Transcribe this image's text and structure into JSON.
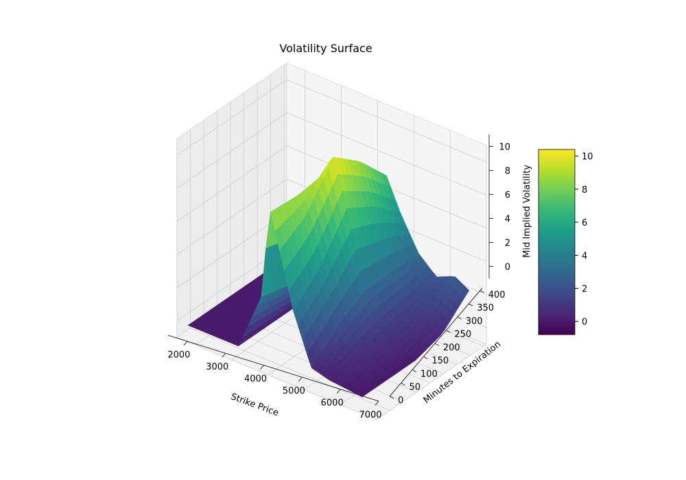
{
  "chart_data": {
    "type": "surface3d",
    "title": "Volatility Surface",
    "xlabel": "Strike Price",
    "ylabel": "Minutes to Expiration",
    "zlabel": "Mid Implied Volatility",
    "xlim": [
      1500,
      7000
    ],
    "ylim": [
      0,
      410
    ],
    "zlim": [
      -1,
      11
    ],
    "x_ticks": [
      "2000",
      "3000",
      "4000",
      "5000",
      "6000",
      "7000"
    ],
    "y_ticks": [
      "0",
      "50",
      "100",
      "150",
      "200",
      "250",
      "300",
      "350",
      "400"
    ],
    "z_ticks": [
      "0",
      "2",
      "4",
      "6",
      "8",
      "10"
    ],
    "colormap": "viridis",
    "colorbar": {
      "range": [
        -0.8,
        10.4
      ],
      "ticks": [
        "0",
        "2",
        "4",
        "6",
        "8",
        "10"
      ],
      "colors": [
        "#440154",
        "#482878",
        "#3e4989",
        "#31688e",
        "#26828e",
        "#1f9e89",
        "#35b779",
        "#6ece58",
        "#b5de2b",
        "#fde725"
      ]
    },
    "grid": true,
    "surface_profile": {
      "strikes": [
        1800,
        2500,
        3200,
        3900,
        4000,
        4300,
        4700,
        5200,
        5700,
        6200,
        6600
      ],
      "minutes": [
        0,
        100,
        200,
        300,
        400
      ],
      "volatility": [
        [
          0.0,
          0.0,
          0.0,
          4.0,
          9.5,
          7.0,
          3.5,
          0.5,
          0.2,
          0.1,
          0.0
        ],
        [
          0.0,
          0.0,
          0.0,
          3.5,
          9.0,
          8.0,
          5.0,
          2.0,
          0.8,
          0.3,
          0.0
        ],
        [
          0.0,
          0.0,
          0.0,
          3.0,
          8.5,
          10.4,
          7.5,
          3.0,
          1.2,
          0.5,
          0.0
        ],
        [
          0.0,
          0.0,
          0.0,
          2.5,
          7.5,
          9.0,
          6.5,
          3.0,
          1.5,
          1.0,
          0.5
        ],
        [
          0.0,
          0.0,
          0.0,
          2.0,
          6.0,
          7.0,
          5.0,
          3.0,
          2.0,
          2.5,
          2.0
        ]
      ]
    }
  }
}
